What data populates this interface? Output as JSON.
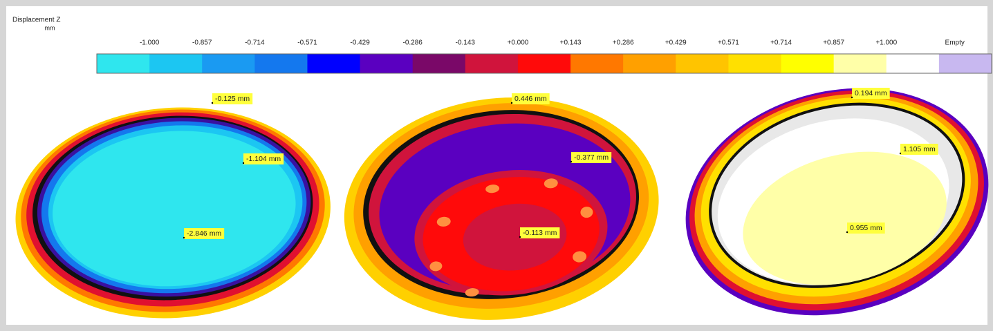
{
  "legend": {
    "title": "Displacement Z",
    "unit": "mm",
    "labels": [
      "-1.000",
      "-0.857",
      "-0.714",
      "-0.571",
      "-0.429",
      "-0.286",
      "-0.143",
      "+0.000",
      "+0.143",
      "+0.286",
      "+0.429",
      "+0.571",
      "+0.714",
      "+0.857",
      "+1.000",
      "Empty"
    ],
    "colors": [
      "#2fe6ee",
      "#1cc6f2",
      "#1a9af2",
      "#1478ee",
      "#0000ff",
      "#5a00c0",
      "#7a0868",
      "#d0143c",
      "#ff0a0a",
      "#ff7800",
      "#ffa000",
      "#ffc400",
      "#ffe000",
      "#ffff00",
      "#ffffa8",
      "#ffffff",
      "#c8b8f0"
    ]
  },
  "results": [
    {
      "annotations": [
        "-0.125 mm",
        "-1.104 mm",
        "-2.846 mm"
      ]
    },
    {
      "annotations": [
        "0.446 mm",
        "-0.377 mm",
        "-0.113 mm"
      ]
    },
    {
      "annotations": [
        "0.194 mm",
        "1.105 mm",
        "0.955 mm"
      ]
    }
  ]
}
